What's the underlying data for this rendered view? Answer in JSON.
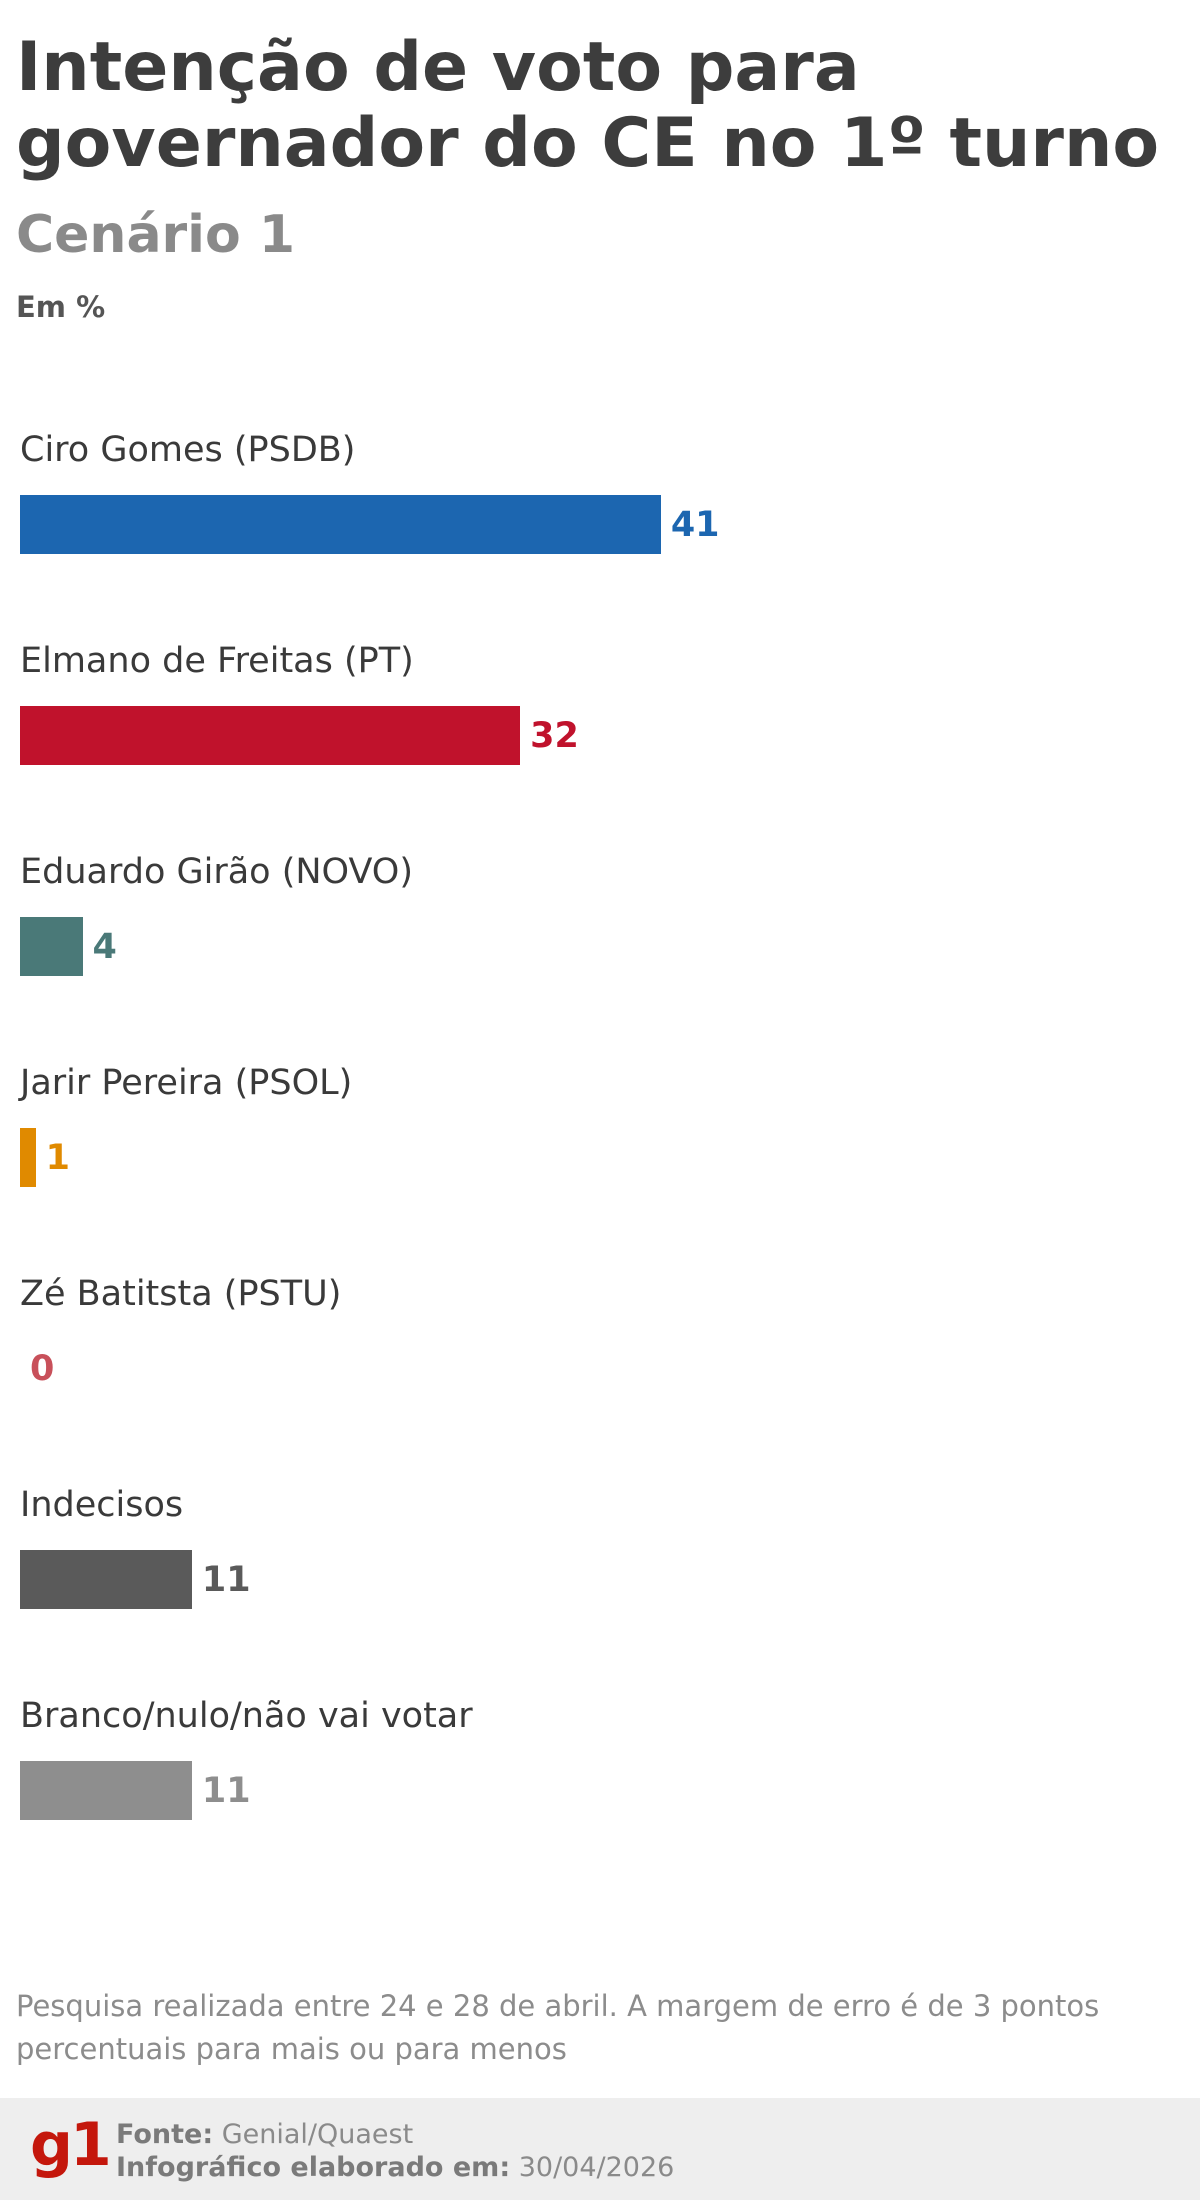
{
  "header": {
    "title": "Intenção de voto para governador do CE no 1º turno",
    "subtitle": "Cenário 1",
    "unit": "Em %"
  },
  "chart_data": {
    "type": "bar",
    "orientation": "horizontal",
    "title": "Intenção de voto para governador do CE no 1º turno",
    "subtitle": "Cenário 1",
    "unit": "Em %",
    "categories": [
      "Ciro Gomes (PSDB)",
      "Elmano de Freitas (PT)",
      "Eduardo Girão (NOVO)",
      "Jarir Pereira (PSOL)",
      "Zé Batitsta (PSTU)",
      "Indecisos",
      "Branco/nulo/não vai votar"
    ],
    "values": [
      41,
      32,
      4,
      1,
      0,
      11,
      11
    ],
    "value_labels": [
      "41",
      "32",
      "4",
      "1",
      "0",
      "11",
      "11"
    ],
    "colors": [
      "#1c66b0",
      "#c0122c",
      "#4a7978",
      "#e08a00",
      "#c8505a",
      "#5a5a5a",
      "#8e8e8e"
    ],
    "grid": false,
    "legend": "none"
  },
  "note": "Pesquisa realizada entre 24 e 28 de abril. A margem de erro é de 3 pontos percentuais para mais ou para menos",
  "footer": {
    "logo": "g1",
    "source_label": "Fonte:",
    "source_value": "Genial/Quaest",
    "date_label": "Infográfico elaborado em:",
    "date_value": "30/04/2026"
  }
}
